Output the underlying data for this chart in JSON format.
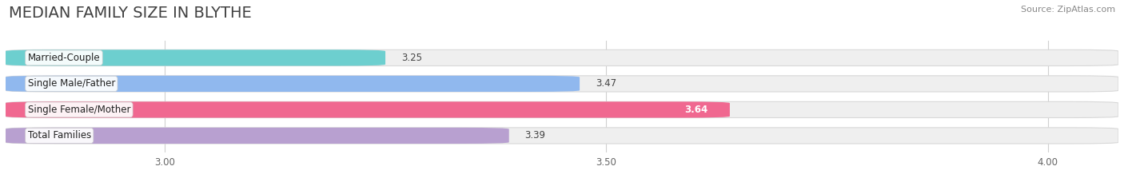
{
  "title": "MEDIAN FAMILY SIZE IN BLYTHE",
  "source": "Source: ZipAtlas.com",
  "categories": [
    "Married-Couple",
    "Single Male/Father",
    "Single Female/Mother",
    "Total Families"
  ],
  "values": [
    3.25,
    3.47,
    3.64,
    3.39
  ],
  "bar_colors": [
    "#6dcfcf",
    "#90b8ee",
    "#f06890",
    "#b8a0d0"
  ],
  "value_inside": [
    false,
    false,
    true,
    false
  ],
  "xlim": [
    2.82,
    4.08
  ],
  "xstart": 2.82,
  "xticks": [
    3.0,
    3.5,
    4.0
  ],
  "xtick_labels": [
    "3.00",
    "3.50",
    "4.00"
  ],
  "background_color": "#ffffff",
  "bar_bg_color": "#efefef",
  "title_fontsize": 14,
  "label_fontsize": 8.5,
  "value_fontsize": 8.5,
  "bar_height": 0.62,
  "bar_gap": 0.38,
  "figsize": [
    14.06,
    2.33
  ],
  "dpi": 100
}
